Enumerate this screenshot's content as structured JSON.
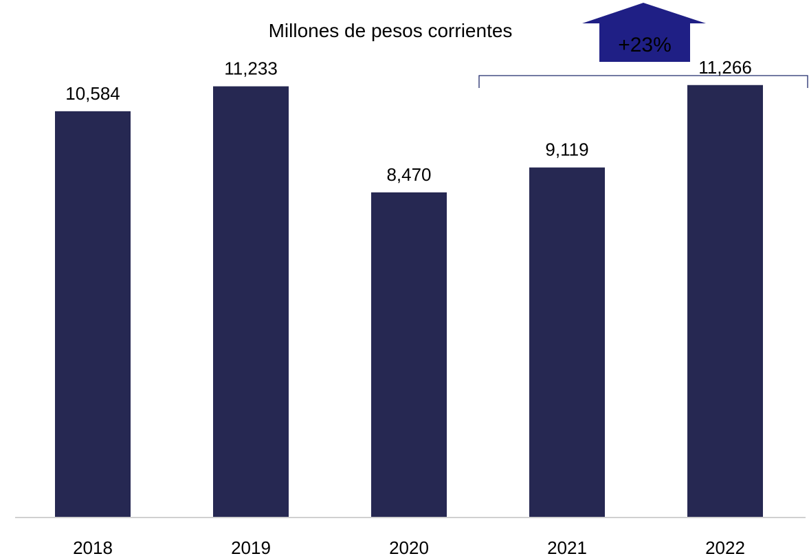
{
  "chart_data": {
    "type": "bar",
    "title": "Millones de pesos corrientes",
    "categories": [
      "2018",
      "2019",
      "2020",
      "2021",
      "2022"
    ],
    "values": [
      10584,
      11233,
      8470,
      9119,
      11266
    ],
    "value_labels": [
      "10,584",
      "11,233",
      "8,470",
      "9,119",
      "11,266"
    ],
    "ylim": [
      0,
      12300
    ],
    "grid": false,
    "legend": "none",
    "annotation": {
      "text": "+23%",
      "from_category": "2021",
      "to_category": "2022",
      "shape": "up-arrow with bracket"
    },
    "colors": {
      "bar": "#262852",
      "arrow": "#1f1f85",
      "arrow_text": "#ffffff",
      "bracket": "#1f2a6b",
      "axis": "#d0d0d0"
    }
  }
}
